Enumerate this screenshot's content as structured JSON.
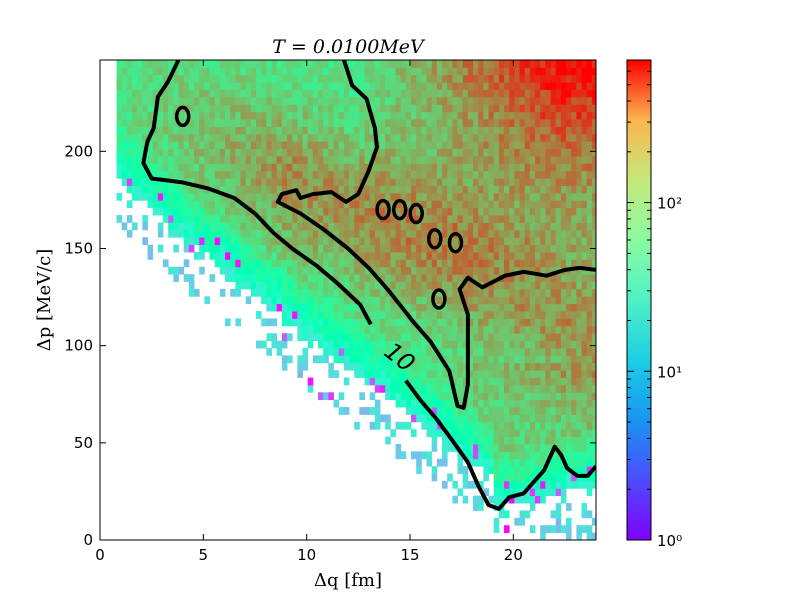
{
  "chart_data": {
    "type": "heatmap",
    "title": "T = 0.0100MeV",
    "xlabel": "Δq [fm]",
    "ylabel": "Δp [MeV/c]",
    "xlim": [
      0,
      24
    ],
    "ylim": [
      0,
      247
    ],
    "xticks": [
      0,
      5,
      10,
      15,
      20
    ],
    "yticks": [
      0,
      50,
      100,
      150,
      200
    ],
    "xtick_labels": [
      "0",
      "5",
      "10",
      "15",
      "20"
    ],
    "ytick_labels": [
      "0",
      "50",
      "100",
      "150",
      "200"
    ],
    "colorbar": {
      "scale": "log",
      "range": [
        1,
        700
      ],
      "ticks": [
        1,
        10,
        100
      ],
      "tick_labels": [
        "10⁰",
        "10¹",
        "10²"
      ],
      "colormap": "rainbow"
    },
    "contour": {
      "level": 10,
      "label": "10",
      "color": "#000000",
      "lines": [
        [
          [
            3.8,
            247
          ],
          [
            3.3,
            236
          ],
          [
            2.8,
            228
          ],
          [
            2.6,
            212
          ],
          [
            2.3,
            205
          ],
          [
            2.2,
            200
          ],
          [
            2.1,
            194
          ],
          [
            2.5,
            186
          ],
          [
            4.0,
            184
          ],
          [
            5.2,
            181
          ],
          [
            6.5,
            176
          ],
          [
            7.5,
            168
          ],
          [
            8.4,
            158
          ],
          [
            9.3,
            150
          ],
          [
            10.5,
            141
          ],
          [
            11.5,
            132
          ],
          [
            12.6,
            121
          ],
          [
            13.1,
            111
          ]
        ],
        [
          [
            14.8,
            82
          ],
          [
            15.5,
            72
          ],
          [
            16.3,
            62
          ],
          [
            17.0,
            52
          ],
          [
            17.8,
            40
          ],
          [
            18.3,
            28
          ],
          [
            18.8,
            18
          ],
          [
            19.3,
            16
          ],
          [
            19.8,
            22
          ],
          [
            20.5,
            24
          ],
          [
            21.0,
            30
          ],
          [
            21.5,
            36
          ],
          [
            22.0,
            48
          ],
          [
            22.3,
            44
          ],
          [
            22.6,
            37
          ],
          [
            23.1,
            33
          ],
          [
            23.6,
            33
          ],
          [
            24.0,
            38
          ]
        ],
        [
          [
            11.8,
            247
          ],
          [
            12.2,
            234
          ],
          [
            12.9,
            227
          ],
          [
            13.3,
            212
          ],
          [
            13.4,
            202
          ],
          [
            13.0,
            190
          ],
          [
            12.5,
            178
          ],
          [
            11.9,
            174
          ],
          [
            11.2,
            179
          ],
          [
            10.3,
            178
          ],
          [
            9.7,
            176
          ],
          [
            9.5,
            180
          ],
          [
            8.8,
            178
          ],
          [
            8.6,
            174
          ],
          [
            9.7,
            168
          ],
          [
            10.8,
            160
          ],
          [
            12.0,
            150
          ],
          [
            13.0,
            140
          ],
          [
            14.0,
            128
          ],
          [
            15.1,
            113
          ],
          [
            16.0,
            102
          ],
          [
            16.9,
            87
          ],
          [
            17.3,
            69
          ],
          [
            17.6,
            68
          ],
          [
            17.8,
            80
          ],
          [
            17.8,
            116
          ],
          [
            17.4,
            129
          ],
          [
            17.8,
            135
          ],
          [
            18.5,
            130
          ],
          [
            19.6,
            136
          ],
          [
            20.5,
            138
          ],
          [
            21.6,
            136
          ],
          [
            22.5,
            139
          ],
          [
            23.2,
            140
          ],
          [
            24.0,
            139
          ]
        ]
      ],
      "islands": [
        [
          4.0,
          218
        ],
        [
          13.7,
          170
        ],
        [
          14.5,
          170
        ],
        [
          15.3,
          168
        ],
        [
          17.2,
          153
        ],
        [
          16.4,
          124
        ],
        [
          16.2,
          155
        ]
      ]
    }
  }
}
